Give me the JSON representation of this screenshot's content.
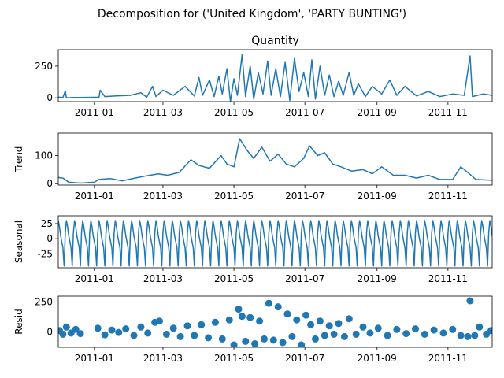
{
  "figure": {
    "suptitle": "Decomposition for ('United Kingdom', 'PARTY BUNTING')"
  },
  "chart_data": [
    {
      "type": "line",
      "title": "Quantity",
      "ylabel": "",
      "x_range": [
        "2011-11-28"
      ],
      "x_start": "2010-12-01",
      "x_end": "2011-12-09",
      "xticks": [
        "2011-01",
        "2011-03",
        "2011-05",
        "2011-07",
        "2011-09",
        "2011-11"
      ],
      "ylim": [
        -30,
        380
      ],
      "yticks": [
        0,
        250
      ],
      "grid": false,
      "points": [
        [
          "2010-12-01",
          5
        ],
        [
          "2010-12-05",
          2
        ],
        [
          "2010-12-07",
          55
        ],
        [
          "2010-12-08",
          0
        ],
        [
          "2010-12-14",
          3
        ],
        [
          "2010-12-20",
          2
        ],
        [
          "2011-01-05",
          5
        ],
        [
          "2011-01-06",
          60
        ],
        [
          "2011-01-10",
          10
        ],
        [
          "2011-01-20",
          15
        ],
        [
          "2011-02-01",
          20
        ],
        [
          "2011-02-10",
          40
        ],
        [
          "2011-02-15",
          5
        ],
        [
          "2011-02-20",
          90
        ],
        [
          "2011-02-23",
          10
        ],
        [
          "2011-03-01",
          60
        ],
        [
          "2011-03-10",
          20
        ],
        [
          "2011-03-20",
          90
        ],
        [
          "2011-03-28",
          15
        ],
        [
          "2011-04-01",
          160
        ],
        [
          "2011-04-04",
          20
        ],
        [
          "2011-04-10",
          140
        ],
        [
          "2011-04-14",
          10
        ],
        [
          "2011-04-18",
          170
        ],
        [
          "2011-04-21",
          30
        ],
        [
          "2011-04-25",
          230
        ],
        [
          "2011-04-28",
          -30
        ],
        [
          "2011-05-01",
          150
        ],
        [
          "2011-05-04",
          20
        ],
        [
          "2011-05-08",
          340
        ],
        [
          "2011-05-11",
          10
        ],
        [
          "2011-05-15",
          250
        ],
        [
          "2011-05-18",
          -10
        ],
        [
          "2011-05-22",
          200
        ],
        [
          "2011-05-26",
          30
        ],
        [
          "2011-05-30",
          290
        ],
        [
          "2011-06-02",
          20
        ],
        [
          "2011-06-06",
          230
        ],
        [
          "2011-06-10",
          10
        ],
        [
          "2011-06-14",
          280
        ],
        [
          "2011-06-18",
          -20
        ],
        [
          "2011-06-22",
          310
        ],
        [
          "2011-06-26",
          50
        ],
        [
          "2011-06-30",
          200
        ],
        [
          "2011-07-04",
          10
        ],
        [
          "2011-07-07",
          300
        ],
        [
          "2011-07-10",
          -10
        ],
        [
          "2011-07-14",
          250
        ],
        [
          "2011-07-18",
          20
        ],
        [
          "2011-07-22",
          180
        ],
        [
          "2011-07-26",
          10
        ],
        [
          "2011-07-30",
          130
        ],
        [
          "2011-08-03",
          20
        ],
        [
          "2011-08-08",
          200
        ],
        [
          "2011-08-12",
          20
        ],
        [
          "2011-08-16",
          110
        ],
        [
          "2011-08-22",
          10
        ],
        [
          "2011-08-28",
          90
        ],
        [
          "2011-09-05",
          30
        ],
        [
          "2011-09-12",
          140
        ],
        [
          "2011-09-18",
          20
        ],
        [
          "2011-09-25",
          90
        ],
        [
          "2011-10-05",
          15
        ],
        [
          "2011-10-15",
          50
        ],
        [
          "2011-10-25",
          10
        ],
        [
          "2011-11-05",
          30
        ],
        [
          "2011-11-15",
          20
        ],
        [
          "2011-11-20",
          330
        ],
        [
          "2011-11-22",
          10
        ],
        [
          "2011-12-01",
          30
        ],
        [
          "2011-12-09",
          20
        ]
      ]
    },
    {
      "type": "line",
      "title": "",
      "ylabel": "Trend",
      "x_start": "2010-12-01",
      "x_end": "2011-12-09",
      "xticks": [
        "2011-01",
        "2011-03",
        "2011-05",
        "2011-07",
        "2011-09",
        "2011-11"
      ],
      "ylim": [
        -5,
        180
      ],
      "yticks": [
        0,
        100
      ],
      "grid": false,
      "points": [
        [
          "2010-12-01",
          22
        ],
        [
          "2010-12-05",
          20
        ],
        [
          "2010-12-10",
          5
        ],
        [
          "2010-12-20",
          2
        ],
        [
          "2011-01-01",
          5
        ],
        [
          "2011-01-05",
          15
        ],
        [
          "2011-01-15",
          18
        ],
        [
          "2011-01-25",
          10
        ],
        [
          "2011-02-05",
          20
        ],
        [
          "2011-02-15",
          28
        ],
        [
          "2011-02-25",
          35
        ],
        [
          "2011-03-05",
          30
        ],
        [
          "2011-03-15",
          40
        ],
        [
          "2011-03-25",
          85
        ],
        [
          "2011-04-01",
          65
        ],
        [
          "2011-04-10",
          55
        ],
        [
          "2011-04-20",
          100
        ],
        [
          "2011-04-25",
          70
        ],
        [
          "2011-05-01",
          60
        ],
        [
          "2011-05-06",
          160
        ],
        [
          "2011-05-12",
          120
        ],
        [
          "2011-05-18",
          90
        ],
        [
          "2011-05-25",
          130
        ],
        [
          "2011-06-01",
          80
        ],
        [
          "2011-06-08",
          105
        ],
        [
          "2011-06-15",
          70
        ],
        [
          "2011-06-22",
          60
        ],
        [
          "2011-06-30",
          90
        ],
        [
          "2011-07-05",
          135
        ],
        [
          "2011-07-12",
          100
        ],
        [
          "2011-07-18",
          110
        ],
        [
          "2011-07-25",
          70
        ],
        [
          "2011-08-01",
          60
        ],
        [
          "2011-08-10",
          45
        ],
        [
          "2011-08-20",
          50
        ],
        [
          "2011-08-28",
          35
        ],
        [
          "2011-09-05",
          60
        ],
        [
          "2011-09-15",
          30
        ],
        [
          "2011-09-25",
          30
        ],
        [
          "2011-10-05",
          20
        ],
        [
          "2011-10-15",
          30
        ],
        [
          "2011-10-25",
          15
        ],
        [
          "2011-11-05",
          15
        ],
        [
          "2011-11-12",
          60
        ],
        [
          "2011-11-18",
          40
        ],
        [
          "2011-11-25",
          15
        ],
        [
          "2011-12-09",
          12
        ]
      ]
    },
    {
      "type": "line",
      "title": "",
      "ylabel": "Seasonal",
      "x_start": "2010-12-01",
      "x_end": "2011-12-09",
      "xticks": [
        "2011-01",
        "2011-03",
        "2011-05",
        "2011-07",
        "2011-09",
        "2011-11"
      ],
      "ylim": [
        -48,
        38
      ],
      "yticks": [
        -25,
        0,
        25
      ],
      "grid": false,
      "period_days": 7,
      "cycle": [
        30,
        20,
        5,
        -5,
        -15,
        -45,
        10
      ]
    },
    {
      "type": "scatter",
      "title": "",
      "ylabel": "Resid",
      "x_start": "2010-12-01",
      "x_end": "2011-12-09",
      "xticks": [
        "2011-01",
        "2011-03",
        "2011-05",
        "2011-07",
        "2011-09",
        "2011-11"
      ],
      "ylim": [
        -130,
        300
      ],
      "yticks": [
        0,
        250
      ],
      "grid": false,
      "points": [
        [
          "2010-12-02",
          10
        ],
        [
          "2010-12-05",
          -20
        ],
        [
          "2010-12-08",
          40
        ],
        [
          "2010-12-12",
          -10
        ],
        [
          "2010-12-16",
          20
        ],
        [
          "2010-12-20",
          -15
        ],
        [
          "2011-01-04",
          30
        ],
        [
          "2011-01-10",
          -25
        ],
        [
          "2011-01-16",
          15
        ],
        [
          "2011-01-22",
          -5
        ],
        [
          "2011-01-28",
          25
        ],
        [
          "2011-02-04",
          -30
        ],
        [
          "2011-02-10",
          40
        ],
        [
          "2011-02-16",
          -10
        ],
        [
          "2011-02-22",
          80
        ],
        [
          "2011-02-26",
          90
        ],
        [
          "2011-03-04",
          -20
        ],
        [
          "2011-03-10",
          30
        ],
        [
          "2011-03-16",
          -40
        ],
        [
          "2011-03-22",
          50
        ],
        [
          "2011-03-28",
          -30
        ],
        [
          "2011-04-03",
          60
        ],
        [
          "2011-04-09",
          -50
        ],
        [
          "2011-04-15",
          80
        ],
        [
          "2011-04-21",
          -60
        ],
        [
          "2011-04-27",
          100
        ],
        [
          "2011-05-01",
          -110
        ],
        [
          "2011-05-05",
          190
        ],
        [
          "2011-05-08",
          130
        ],
        [
          "2011-05-11",
          -80
        ],
        [
          "2011-05-15",
          120
        ],
        [
          "2011-05-19",
          -100
        ],
        [
          "2011-05-23",
          90
        ],
        [
          "2011-05-27",
          -60
        ],
        [
          "2011-05-31",
          240
        ],
        [
          "2011-06-04",
          -70
        ],
        [
          "2011-06-08",
          210
        ],
        [
          "2011-06-12",
          -90
        ],
        [
          "2011-06-16",
          150
        ],
        [
          "2011-06-20",
          -40
        ],
        [
          "2011-06-24",
          100
        ],
        [
          "2011-06-28",
          -110
        ],
        [
          "2011-07-02",
          140
        ],
        [
          "2011-07-06",
          60
        ],
        [
          "2011-07-10",
          -60
        ],
        [
          "2011-07-14",
          90
        ],
        [
          "2011-07-18",
          -30
        ],
        [
          "2011-07-22",
          50
        ],
        [
          "2011-07-26",
          -20
        ],
        [
          "2011-07-30",
          70
        ],
        [
          "2011-08-04",
          -40
        ],
        [
          "2011-08-08",
          110
        ],
        [
          "2011-08-14",
          -20
        ],
        [
          "2011-08-20",
          40
        ],
        [
          "2011-08-26",
          -10
        ],
        [
          "2011-09-02",
          30
        ],
        [
          "2011-09-10",
          -30
        ],
        [
          "2011-09-18",
          20
        ],
        [
          "2011-09-26",
          -15
        ],
        [
          "2011-10-04",
          25
        ],
        [
          "2011-10-12",
          -20
        ],
        [
          "2011-10-20",
          15
        ],
        [
          "2011-10-28",
          -10
        ],
        [
          "2011-11-05",
          20
        ],
        [
          "2011-11-12",
          -30
        ],
        [
          "2011-11-18",
          -40
        ],
        [
          "2011-11-20",
          260
        ],
        [
          "2011-11-24",
          -30
        ],
        [
          "2011-11-28",
          40
        ],
        [
          "2011-12-04",
          -20
        ],
        [
          "2011-12-08",
          10
        ]
      ]
    }
  ],
  "colors": {
    "series": "#1f77b4",
    "axes": "#000000",
    "background": "#ffffff"
  }
}
